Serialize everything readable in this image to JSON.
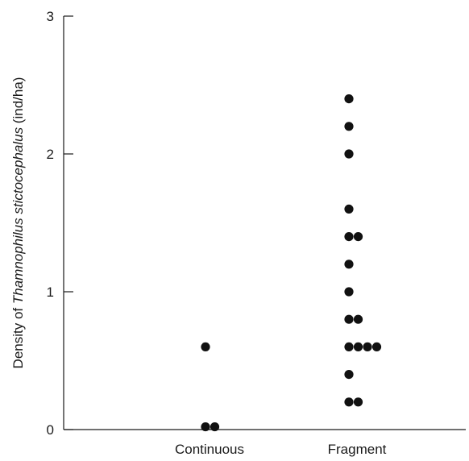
{
  "chart_data": {
    "type": "scatter",
    "title": "",
    "xlabel": "",
    "ylabel_parts": [
      {
        "text": "Density of ",
        "italic": false
      },
      {
        "text": "Thamnophilus stictocephalus",
        "italic": true
      },
      {
        "text": " (ind/ha)",
        "italic": false
      }
    ],
    "categories": [
      "Continuous",
      "Fragment"
    ],
    "ylim": [
      0,
      3
    ],
    "yticks": [
      "0",
      "1",
      "2",
      "3"
    ],
    "grid": false,
    "points": [
      {
        "category": "Continuous",
        "y": 0.6
      },
      {
        "category": "Continuous",
        "y": 0.02
      },
      {
        "category": "Continuous",
        "y": 0.02
      },
      {
        "category": "Fragment",
        "y": 2.4
      },
      {
        "category": "Fragment",
        "y": 2.2
      },
      {
        "category": "Fragment",
        "y": 2.0
      },
      {
        "category": "Fragment",
        "y": 1.6
      },
      {
        "category": "Fragment",
        "y": 1.4
      },
      {
        "category": "Fragment",
        "y": 1.4
      },
      {
        "category": "Fragment",
        "y": 1.2
      },
      {
        "category": "Fragment",
        "y": 1.0
      },
      {
        "category": "Fragment",
        "y": 0.8
      },
      {
        "category": "Fragment",
        "y": 0.8
      },
      {
        "category": "Fragment",
        "y": 0.6
      },
      {
        "category": "Fragment",
        "y": 0.6
      },
      {
        "category": "Fragment",
        "y": 0.6
      },
      {
        "category": "Fragment",
        "y": 0.6
      },
      {
        "category": "Fragment",
        "y": 0.4
      },
      {
        "category": "Fragment",
        "y": 0.2
      },
      {
        "category": "Fragment",
        "y": 0.2
      }
    ],
    "colors": {
      "point": "#111111",
      "axis": "#1a1a1a"
    }
  }
}
